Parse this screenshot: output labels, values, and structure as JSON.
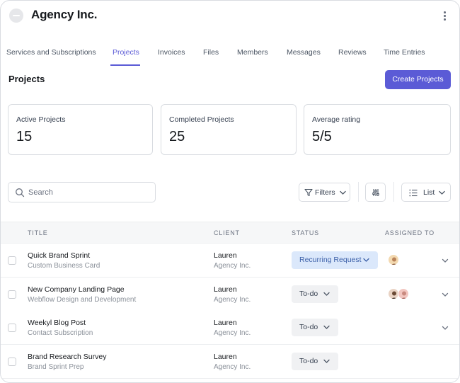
{
  "header": {
    "company": "Agency Inc.",
    "logo_icon": "logo-icon",
    "menu_icon": "kebab-menu-icon"
  },
  "tabs": [
    {
      "label": "Services and Subscriptions",
      "active": false
    },
    {
      "label": "Projects",
      "active": true
    },
    {
      "label": "Invoices",
      "active": false
    },
    {
      "label": "Files",
      "active": false
    },
    {
      "label": "Members",
      "active": false
    },
    {
      "label": "Messages",
      "active": false
    },
    {
      "label": "Reviews",
      "active": false
    },
    {
      "label": "Time Entries",
      "active": false
    }
  ],
  "section": {
    "title": "Projects",
    "create_label": "Create Projects"
  },
  "stats": [
    {
      "label": "Active Projects",
      "value": "15"
    },
    {
      "label": "Completed Projects",
      "value": "25"
    },
    {
      "label": "Average rating",
      "value": "5/5"
    }
  ],
  "toolbar": {
    "search_placeholder": "Search",
    "filters_label": "Filters",
    "view_label": "List",
    "icons": [
      "search-icon",
      "filter-icon",
      "sliders-icon",
      "list-icon",
      "chevron-down-icon"
    ]
  },
  "table": {
    "columns": [
      "TITLE",
      "CLIENT",
      "STATUS",
      "ASSIGNED TO"
    ],
    "rows": [
      {
        "title": "Quick Brand Sprint",
        "subtitle": "Custom Business Card",
        "client": "Lauren",
        "client_sub": "Agency Inc.",
        "status": "Recurring Request",
        "assignees": 1,
        "expandable": true
      },
      {
        "title": "New Company Landing Page",
        "subtitle": "Webflow Design and Development",
        "client": "Lauren",
        "client_sub": "Agency Inc.",
        "status": "To-do",
        "assignees": 2,
        "expandable": true
      },
      {
        "title": "Weekyl Blog Post",
        "subtitle": "Contact Subscription",
        "client": "Lauren",
        "client_sub": "Agency Inc.",
        "status": "To-do",
        "assignees": 0,
        "expandable": true
      },
      {
        "title": "Brand Research Survey",
        "subtitle": "Brand Sprint Prep",
        "client": "Lauren",
        "client_sub": "Agency Inc.",
        "status": "To-do",
        "assignees": 0,
        "expandable": false
      }
    ]
  },
  "colors": {
    "accent": "#5b5bd6",
    "status_blue_bg": "#dbe8fb",
    "status_gray_bg": "#f0f1f3"
  }
}
